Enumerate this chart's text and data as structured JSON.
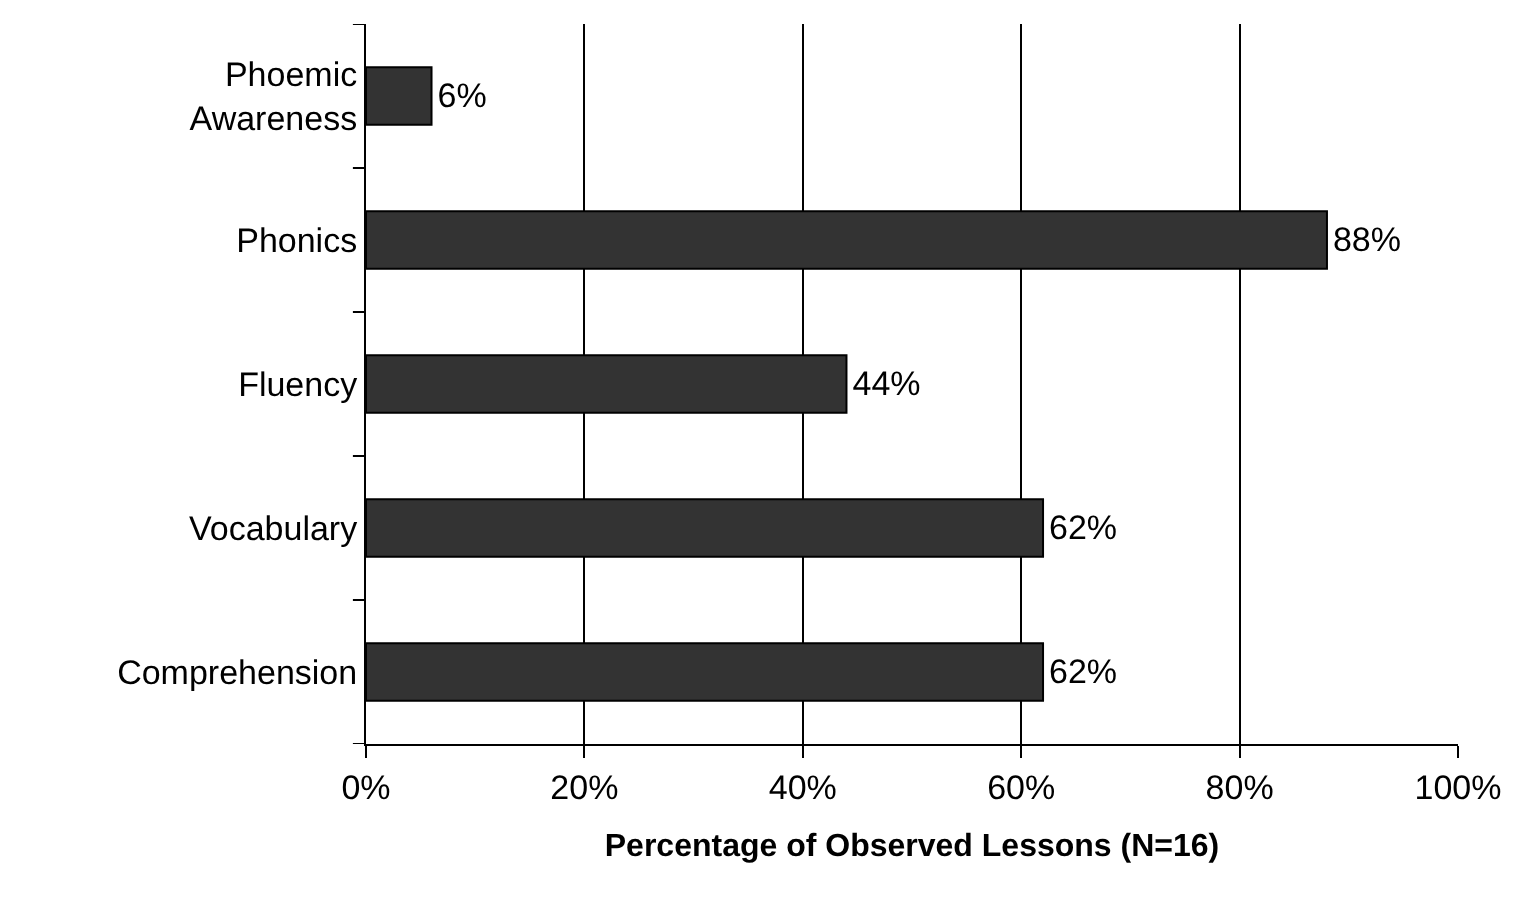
{
  "chart_data": {
    "type": "bar",
    "orientation": "horizontal",
    "xlabel": "Percentage of Observed Lessons (N=16)",
    "categories": [
      "Phoemic\nAwareness",
      "Phonics",
      "Fluency",
      "Vocabulary",
      "Comprehension"
    ],
    "values": [
      6,
      88,
      44,
      62,
      62
    ],
    "value_labels": [
      "6%",
      "88%",
      "44%",
      "62%",
      "62%"
    ],
    "color": "#333333",
    "xlim": [
      0,
      100
    ],
    "xticks": [
      {
        "value": 0,
        "label": "0%"
      },
      {
        "value": 20,
        "label": "20%"
      },
      {
        "value": 40,
        "label": "40%"
      },
      {
        "value": 60,
        "label": "60%"
      },
      {
        "value": 80,
        "label": "80%"
      },
      {
        "value": 100,
        "label": "100%"
      }
    ],
    "grid": "x",
    "legend": false
  }
}
